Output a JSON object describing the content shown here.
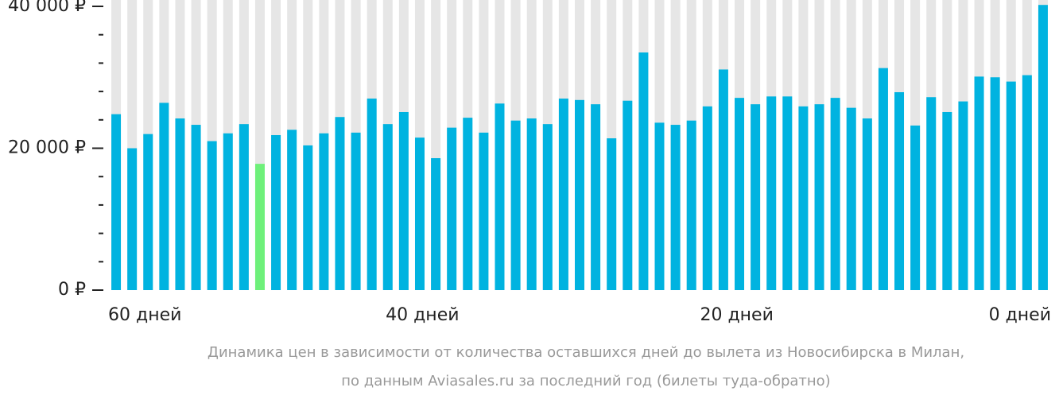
{
  "chart_data": {
    "type": "bar",
    "caption": [
      "Динамика цен в зависимости от количества оставшихся дней до вылета из Новосибирска в Милан,",
      "по данным Aviasales.ru за последний год (билеты туда-обратно)"
    ],
    "values": [
      24800,
      20000,
      22000,
      26400,
      24200,
      23300,
      21000,
      22100,
      23400,
      17800,
      21850,
      22600,
      20400,
      22100,
      24400,
      22200,
      27000,
      23400,
      25100,
      21500,
      18600,
      22900,
      24300,
      22200,
      26300,
      23900,
      24200,
      23400,
      27000,
      26800,
      26200,
      21400,
      26700,
      33500,
      23600,
      23300,
      23900,
      25900,
      31100,
      27100,
      26200,
      27300,
      27300,
      25900,
      26200,
      27100,
      25700,
      24200,
      31300,
      27900,
      23200,
      27200,
      25100,
      26600,
      30100,
      30000,
      29400,
      30300,
      40200
    ],
    "color": "#00b3e0",
    "highlight": {
      "index": 9,
      "color": "#6ef07a"
    },
    "ylim": [
      0,
      40000
    ],
    "yticks": [
      {
        "value": 0,
        "label": "0 ₽"
      },
      {
        "value": 20000,
        "label": "20 000 ₽"
      },
      {
        "value": 40000,
        "label": "40 000 ₽"
      }
    ],
    "yminorticks": [
      4000,
      8000,
      12000,
      16000,
      24000,
      28000,
      32000,
      36000
    ],
    "xlim": [
      60,
      0
    ],
    "xticks": [
      {
        "value": 60,
        "label": "60 дней"
      },
      {
        "value": 40,
        "label": "40 дней"
      },
      {
        "value": 20,
        "label": "20 дней"
      },
      {
        "value": 0,
        "label": "0 дней"
      }
    ]
  }
}
